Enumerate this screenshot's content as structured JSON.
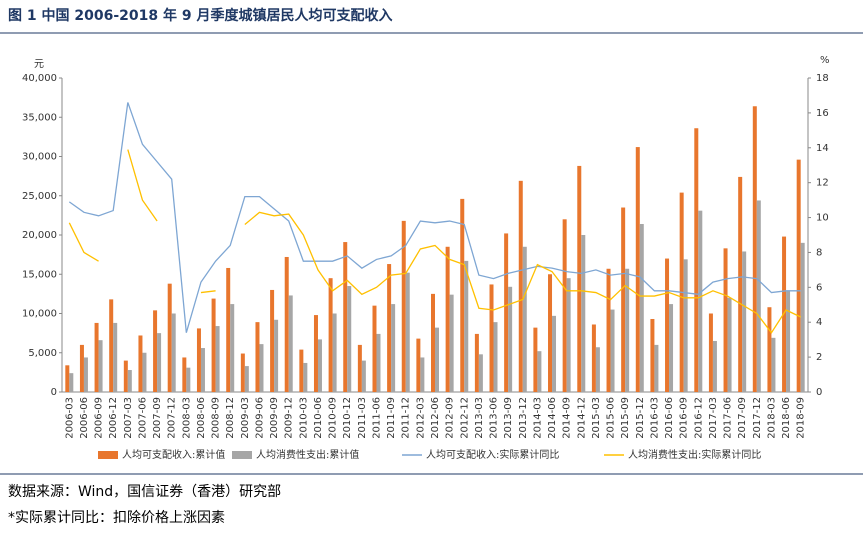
{
  "chart_data": {
    "type": "bar",
    "title": "图 1   中国 2006-2018 年 9 月季度城镇居民人均可支配收入",
    "y_unit": "元",
    "y2_unit": "%",
    "categories": [
      "2006-03",
      "2006-06",
      "2006-09",
      "2006-12",
      "2007-03",
      "2007-06",
      "2007-09",
      "2007-12",
      "2008-03",
      "2008-06",
      "2008-09",
      "2008-12",
      "2009-03",
      "2009-06",
      "2009-09",
      "2009-12",
      "2010-03",
      "2010-06",
      "2010-09",
      "2010-12",
      "2011-03",
      "2011-06",
      "2011-09",
      "2011-12",
      "2012-03",
      "2012-06",
      "2012-09",
      "2012-12",
      "2013-03",
      "2013-06",
      "2013-09",
      "2013-12",
      "2014-03",
      "2014-06",
      "2014-09",
      "2014-12",
      "2015-03",
      "2015-06",
      "2015-09",
      "2015-12",
      "2016-03",
      "2016-06",
      "2016-09",
      "2016-12",
      "2017-03",
      "2017-06",
      "2017-09",
      "2017-12",
      "2018-03",
      "2018-06",
      "2018-09"
    ],
    "series": [
      {
        "name": "人均可支配收入:累计值",
        "type": "bar",
        "color": "#e8762d",
        "axis": "y",
        "values": [
          3400,
          6000,
          8800,
          11800,
          4000,
          7200,
          10400,
          13800,
          4400,
          8100,
          11900,
          15800,
          4900,
          8900,
          13000,
          17200,
          5400,
          9800,
          14500,
          19100,
          6000,
          11000,
          16300,
          21800,
          6800,
          12500,
          18500,
          24600,
          7400,
          13700,
          20200,
          26900,
          8200,
          15000,
          22000,
          28800,
          8600,
          15700,
          23500,
          31200,
          9300,
          17000,
          25400,
          33600,
          10000,
          18300,
          27400,
          36400,
          10800,
          19800,
          29600
        ]
      },
      {
        "name": "人均消费性支出:累计值",
        "type": "bar",
        "color": "#a6a6a6",
        "axis": "y",
        "values": [
          2400,
          4400,
          6600,
          8800,
          2800,
          5000,
          7500,
          10000,
          3100,
          5600,
          8400,
          11200,
          3300,
          6100,
          9200,
          12300,
          3700,
          6700,
          10000,
          13500,
          4000,
          7400,
          11200,
          15200,
          4400,
          8200,
          12400,
          16700,
          4800,
          8900,
          13400,
          18500,
          5200,
          9700,
          14500,
          20000,
          5700,
          10500,
          15700,
          21400,
          6000,
          11200,
          16900,
          23100,
          6500,
          12000,
          17900,
          24400,
          6900,
          12800,
          19000
        ]
      },
      {
        "name": "人均可支配收入:实际累计同比",
        "type": "line",
        "color": "#7ea6d3",
        "axis": "y2",
        "values": [
          10.9,
          10.3,
          10.1,
          10.4,
          16.6,
          14.2,
          13.2,
          12.2,
          3.4,
          6.3,
          7.5,
          8.4,
          11.2,
          11.2,
          10.5,
          9.8,
          7.5,
          7.5,
          7.5,
          7.8,
          7.1,
          7.6,
          7.8,
          8.4,
          9.8,
          9.7,
          9.8,
          9.6,
          6.7,
          6.5,
          6.8,
          7.0,
          7.2,
          7.1,
          6.9,
          6.8,
          7.0,
          6.7,
          6.8,
          6.6,
          5.8,
          5.8,
          5.7,
          5.6,
          6.3,
          6.5,
          6.6,
          6.5,
          5.7,
          5.8,
          5.8
        ]
      },
      {
        "name": "人均消费性支出:实际累计同比",
        "type": "line",
        "color": "#ffc000",
        "axis": "y2",
        "values": [
          9.7,
          8.0,
          7.5,
          null,
          13.9,
          11.0,
          9.8,
          null,
          null,
          5.7,
          5.8,
          null,
          9.6,
          10.3,
          10.1,
          10.2,
          9.0,
          7.0,
          5.8,
          6.4,
          5.6,
          6.0,
          6.7,
          6.8,
          8.2,
          8.4,
          7.6,
          7.3,
          4.8,
          4.7,
          5.0,
          5.3,
          7.3,
          6.9,
          5.8,
          5.8,
          5.7,
          5.3,
          6.1,
          5.5,
          5.5,
          5.7,
          5.4,
          5.4,
          5.8,
          5.5,
          5.0,
          4.5,
          3.4,
          4.7,
          4.3
        ]
      }
    ],
    "ylim": [
      0,
      40000
    ],
    "yticks": [
      0,
      {
        "value": 5000,
        "label": "5,000"
      },
      {
        "value": 10000,
        "label": "10,000"
      },
      {
        "value": 15000,
        "label": "15,000"
      },
      {
        "value": 20000,
        "label": "20,000"
      },
      {
        "value": 25000,
        "label": "25,000"
      },
      {
        "value": 30000,
        "label": "30,000"
      },
      {
        "value": 35000,
        "label": "35,000"
      },
      {
        "value": 40000,
        "label": "40,000"
      }
    ],
    "y2lim": [
      0,
      18
    ],
    "y2ticks": [
      0,
      2,
      4,
      6,
      8,
      10,
      12,
      14,
      16,
      18
    ],
    "legend": "bottom"
  },
  "source": "数据来源：Wind，国信证券（香港）研究部",
  "note": "*实际累计同比：扣除价格上涨因素"
}
